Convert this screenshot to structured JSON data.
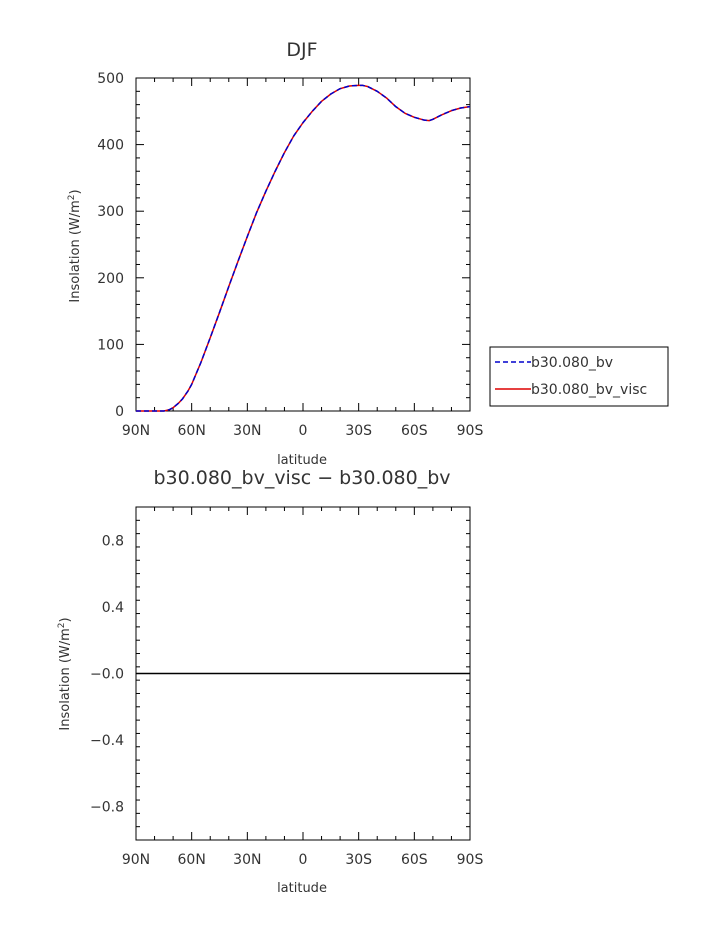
{
  "chart_data": [
    {
      "type": "line",
      "title": "DJF",
      "xlabel": "latitude",
      "ylabel_main": "Insolation (W/m",
      "ylabel_sup": "2",
      "ylabel_tail": ")",
      "xlim": [
        -90,
        90
      ],
      "ylim": [
        0,
        500
      ],
      "x_ticks": [
        "90N",
        "60N",
        "30N",
        "0",
        "30S",
        "60S",
        "90S"
      ],
      "y_ticks": [
        "0",
        "100",
        "200",
        "300",
        "400",
        "500"
      ],
      "x": [
        -90,
        -85,
        -80,
        -75,
        -72,
        -70,
        -67,
        -65,
        -62,
        -60,
        -55,
        -50,
        -45,
        -40,
        -35,
        -30,
        -25,
        -20,
        -15,
        -10,
        -5,
        0,
        5,
        10,
        15,
        20,
        25,
        30,
        32,
        35,
        40,
        45,
        50,
        55,
        60,
        65,
        68,
        70,
        75,
        80,
        85,
        90
      ],
      "series": [
        {
          "name": "b30.080_bv",
          "color": "#0000cc",
          "dash": "dashed",
          "values": [
            0,
            0,
            0,
            0,
            2,
            5,
            12,
            18,
            30,
            40,
            73,
            110,
            148,
            187,
            225,
            262,
            298,
            330,
            360,
            388,
            413,
            433,
            450,
            465,
            476,
            484,
            488,
            489,
            489,
            487,
            480,
            470,
            457,
            447,
            441,
            437,
            436,
            438,
            445,
            451,
            455,
            457
          ]
        },
        {
          "name": "b30.080_bv_visc",
          "color": "#dd0000",
          "dash": "solid",
          "values": [
            0,
            0,
            0,
            0,
            2,
            5,
            12,
            18,
            30,
            40,
            73,
            110,
            148,
            187,
            225,
            262,
            298,
            330,
            360,
            388,
            413,
            433,
            450,
            465,
            476,
            484,
            488,
            489,
            489,
            487,
            480,
            470,
            457,
            447,
            441,
            437,
            436,
            438,
            445,
            451,
            455,
            457
          ]
        }
      ],
      "legend_position": "right"
    },
    {
      "type": "line",
      "title": "b30.080_bv_visc − b30.080_bv",
      "xlabel": "latitude",
      "ylabel_main": "Insolation (W/m",
      "ylabel_sup": "2",
      "ylabel_tail": ")",
      "xlim": [
        -90,
        90
      ],
      "ylim": [
        -1,
        1
      ],
      "x_ticks": [
        "90N",
        "60N",
        "30N",
        "0",
        "30S",
        "60S",
        "90S"
      ],
      "y_ticks": [
        "−0.8",
        "−0.4",
        "−0.0",
        "0.4",
        "0.8"
      ],
      "y_tick_values": [
        -0.8,
        -0.4,
        0,
        0.4,
        0.8
      ],
      "x": [
        -90,
        90
      ],
      "series": [
        {
          "color": "#000000",
          "values": [
            0,
            0
          ]
        }
      ]
    }
  ]
}
